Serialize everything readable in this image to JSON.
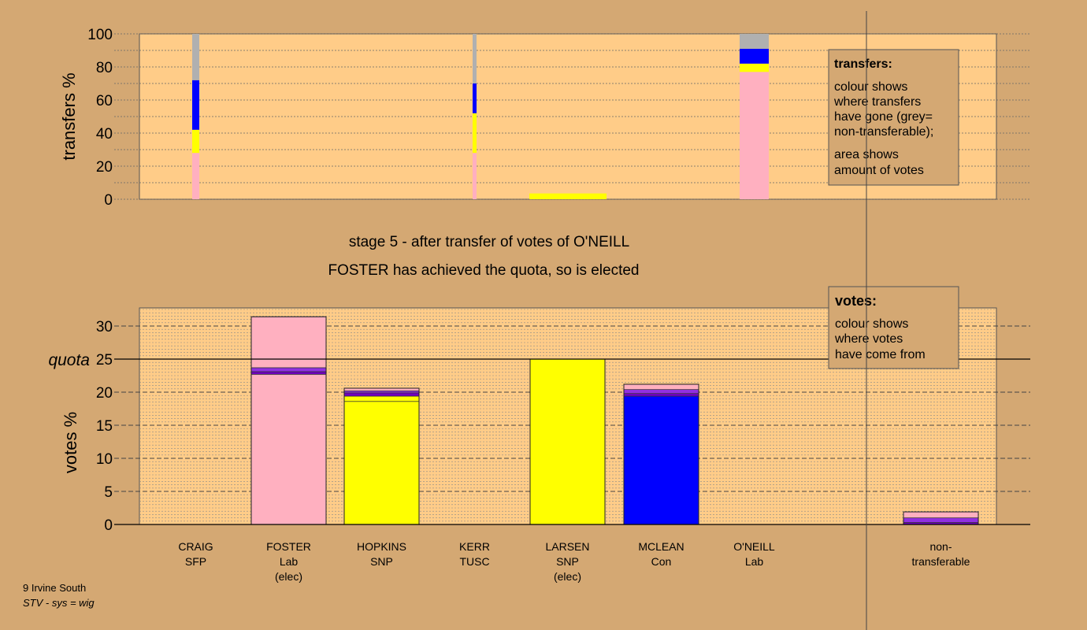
{
  "chart_data": [
    {
      "type": "bar",
      "ylabel": "transfers %",
      "ylim": [
        0,
        100
      ],
      "yticks": [
        0,
        20,
        40,
        60,
        80,
        100
      ],
      "grid": true,
      "transfers": [
        {
          "segments": [
            {
              "value": 28,
              "color": "#ffb0c0"
            },
            {
              "value": 14,
              "color": "#ffff00"
            },
            {
              "value": 30,
              "color": "#0000ff"
            },
            {
              "value": 28,
              "color": "#b0b0b0"
            }
          ]
        },
        {
          "segments": [
            {
              "value": 28,
              "color": "#ffb0c0"
            },
            {
              "value": 24,
              "color": "#ffff00"
            },
            {
              "value": 18,
              "color": "#0000ff"
            },
            {
              "value": 30,
              "color": "#b0b0b0"
            }
          ]
        },
        {
          "segments": [
            {
              "value": 3.5,
              "color": "#ffff00"
            }
          ]
        },
        {
          "segments": [
            {
              "value": 77,
              "color": "#ffb0c0"
            },
            {
              "value": 5,
              "color": "#ffff00"
            },
            {
              "value": 9,
              "color": "#0000ff"
            },
            {
              "value": 9,
              "color": "#b0b0b0"
            }
          ]
        }
      ],
      "legend": {
        "title": "transfers:",
        "lines1": [
          "colour shows",
          "where transfers",
          "have gone (grey=",
          "non-transferable);"
        ],
        "lines2": [
          "area shows",
          "amount of votes"
        ]
      }
    },
    {
      "type": "bar",
      "ylabel": "votes %",
      "ylim": [
        0,
        33
      ],
      "yticks": [
        0,
        5,
        10,
        15,
        20,
        25,
        30
      ],
      "quota": 25,
      "quota_label": "quota",
      "grid": true,
      "categories": [
        {
          "name": "CRAIG",
          "party": "SFP",
          "note": ""
        },
        {
          "name": "FOSTER",
          "party": "Lab",
          "note": "(elec)"
        },
        {
          "name": "HOPKINS",
          "party": "SNP",
          "note": ""
        },
        {
          "name": "KERR",
          "party": "TUSC",
          "note": ""
        },
        {
          "name": "LARSEN",
          "party": "SNP",
          "note": "(elec)"
        },
        {
          "name": "MCLEAN",
          "party": "Con",
          "note": ""
        },
        {
          "name": "O'NEILL",
          "party": "Lab",
          "note": ""
        }
      ],
      "nontransferable_label": [
        "non-",
        "transferable"
      ],
      "votes": [
        {
          "segments": []
        },
        {
          "segments": [
            {
              "value": 22.7,
              "color": "#ffb0c0"
            },
            {
              "value": 0.4,
              "color": "#7000c0"
            },
            {
              "value": 0.6,
              "color": "#9030e0"
            },
            {
              "value": 7.7,
              "color": "#ffb0c0"
            }
          ]
        },
        {
          "segments": [
            {
              "value": 18.6,
              "color": "#ffff00"
            },
            {
              "value": 0.8,
              "color": "#ffff00"
            },
            {
              "value": 0.5,
              "color": "#7000c0"
            },
            {
              "value": 0.3,
              "color": "#9030e0"
            },
            {
              "value": 0.4,
              "color": "#ffb0c0"
            }
          ]
        },
        {
          "segments": []
        },
        {
          "segments": [
            {
              "value": 25.0,
              "color": "#ffff00"
            }
          ]
        },
        {
          "segments": [
            {
              "value": 19.4,
              "color": "#0000ff"
            },
            {
              "value": 0.4,
              "color": "#7000c0"
            },
            {
              "value": 0.6,
              "color": "#9030e0"
            },
            {
              "value": 0.8,
              "color": "#ffb0c0"
            }
          ]
        },
        {
          "segments": []
        },
        {
          "segments": [
            {
              "value": 0.3,
              "color": "#7000c0"
            },
            {
              "value": 0.7,
              "color": "#9030e0"
            },
            {
              "value": 0.9,
              "color": "#ffb0c0"
            }
          ]
        }
      ],
      "legend": {
        "title": "votes:",
        "lines": [
          "colour shows",
          "where votes",
          "have come from"
        ]
      }
    }
  ],
  "stage_title": "stage 5 - after transfer of votes of O'NEILL",
  "stage_subtitle": "FOSTER has achieved the quota, so is elected",
  "footer": {
    "line1": "9 Irvine South",
    "line2": "STV - sys = wig"
  }
}
